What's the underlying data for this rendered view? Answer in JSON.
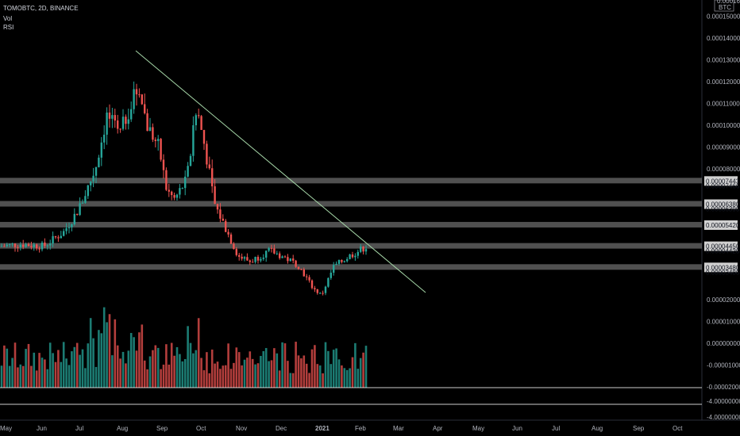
{
  "header": {
    "title": "TOMOBTC, 2D, BINANCE",
    "vol_label": "Vol",
    "rsi_label": "RSI"
  },
  "axis": {
    "currency": "BTC",
    "currency_price": "0.00016000",
    "price_ticks": [
      {
        "label": "0.00015000",
        "value": 0.00015
      },
      {
        "label": "0.00014000",
        "value": 0.00014
      },
      {
        "label": "0.00013000",
        "value": 0.00013
      },
      {
        "label": "0.00012000",
        "value": 0.00012
      },
      {
        "label": "0.00011000",
        "value": 0.00011
      },
      {
        "label": "0.00010000",
        "value": 0.0001
      },
      {
        "label": "0.00009000",
        "value": 9e-05
      },
      {
        "label": "0.00008000",
        "value": 8e-05
      },
      {
        "label": "0.00002000",
        "value": 2e-05
      },
      {
        "label": "0.00001000",
        "value": 1e-05
      },
      {
        "label": "0.00000000",
        "value": 0.0
      },
      {
        "label": "-0.00001000",
        "value": -1e-05
      },
      {
        "label": "-0.00002000",
        "value": -2e-05
      }
    ],
    "lower_ticks": [
      "-4.00000000",
      "-4.00000000"
    ],
    "months": [
      "May",
      "Jun",
      "Jul",
      "Aug",
      "Sep",
      "Oct",
      "Nov",
      "Dec",
      "2021",
      "Feb",
      "Mar",
      "Apr",
      "May",
      "Jun",
      "Jul",
      "Aug",
      "Sep",
      "Oct"
    ]
  },
  "levels": [
    {
      "label": "0.00007443",
      "value": 7.443e-05,
      "hidden_label": "0.00007466"
    },
    {
      "label": "0.00006380",
      "value": 6.38e-05,
      "hidden_label": "0.00006390"
    },
    {
      "label": "0.00005420",
      "value": 5.42e-05,
      "hidden_label": ""
    },
    {
      "label": "0.00004450",
      "value": 4.45e-05,
      "hidden_label": "0.00004420"
    },
    {
      "label": "0.00003480",
      "value": 3.48e-05,
      "hidden_label": "0.00003480"
    }
  ],
  "colors": {
    "up": "#26a69a",
    "down": "#ef5350",
    "trendline": "#a5d6a7",
    "band": "#6b6b6b",
    "axis_bg": "#000000"
  },
  "chart_data": {
    "type": "candlestick",
    "symbol": "TOMOBTC",
    "interval": "2D",
    "exchange": "BINANCE",
    "y_range": [
      -2e-05,
      0.00016
    ],
    "x_range": [
      "2020-05",
      "2021-10"
    ],
    "candles_approx": [
      {
        "x": "2020-05",
        "close": 4.45e-05
      },
      {
        "x": "2020-06",
        "close": 4.7e-05
      },
      {
        "x": "2020-07",
        "close": 0.0001
      },
      {
        "x": "2020-08",
        "close": 0.00012
      },
      {
        "x": "2020-09",
        "close": 7.5e-05
      },
      {
        "x": "2020-10",
        "close": 6.4e-05
      },
      {
        "x": "2020-11",
        "close": 3.75e-05
      },
      {
        "x": "2020-12",
        "close": 3.45e-05
      },
      {
        "x": "2021-01",
        "close": 3.3e-05
      },
      {
        "x": "2021-02",
        "close": 4.45e-05
      }
    ],
    "trendline": {
      "from": {
        "x": "2020-08",
        "y": 0.000136
      },
      "to": {
        "x": "2021-03",
        "y": 2.75e-05
      }
    },
    "volume_approx": [
      {
        "x": "2020-07",
        "value": 1.1e-05
      },
      {
        "x": "2020-08",
        "value": 1.4e-05
      },
      {
        "x": "2020-10",
        "value": 9e-06
      },
      {
        "x": "2021-01",
        "value": 1e-06
      }
    ]
  }
}
